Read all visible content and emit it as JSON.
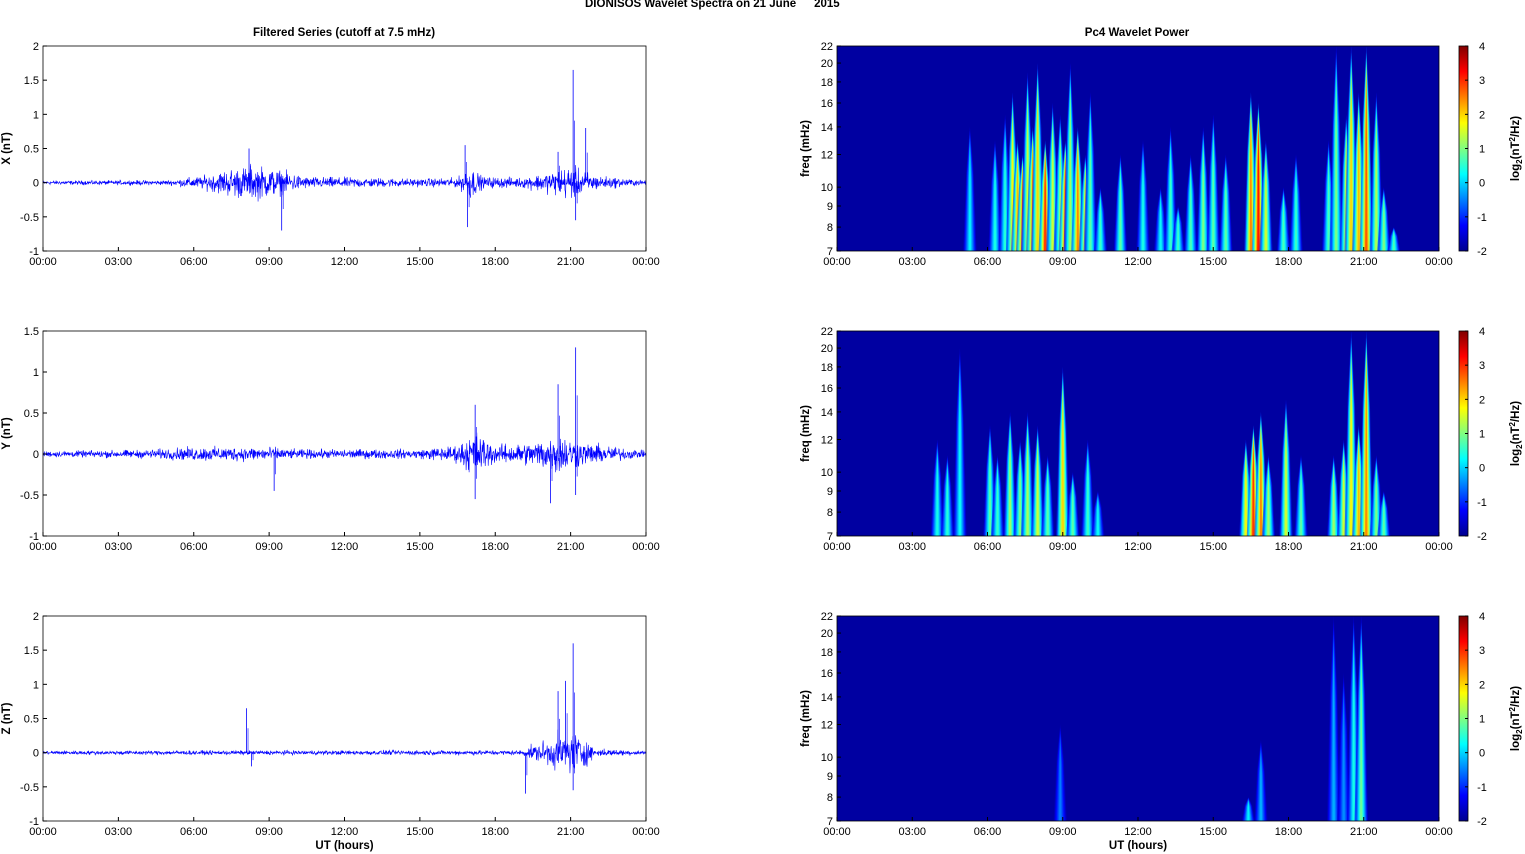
{
  "figure": {
    "title": "DIONISOS Wavelet Spectra on 21 June",
    "year": "2015",
    "left_title": "Filtered Series (cutoff at 7.5 mHz)",
    "right_title": "Pc4 Wavelet Power",
    "xlabel": "UT (hours)",
    "series_color": "#0000ff",
    "colormap": [
      "#00008f",
      "#0000ff",
      "#0080ff",
      "#00ffff",
      "#80ff80",
      "#ffff00",
      "#ff8000",
      "#ff0000",
      "#800000"
    ]
  },
  "chart_data": [
    {
      "type": "line",
      "component": "X",
      "ylabel": "X (nT)",
      "xticks": [
        "00:00",
        "03:00",
        "06:00",
        "09:00",
        "12:00",
        "15:00",
        "18:00",
        "21:00",
        "00:00"
      ],
      "xlim": [
        0,
        24
      ],
      "ylim": [
        -1,
        2
      ],
      "yticks": [
        "-1",
        "-0.5",
        "0",
        "0.5",
        "1",
        "1.5",
        "2"
      ],
      "noise_envelope": [
        [
          0,
          0.04
        ],
        [
          5,
          0.05
        ],
        [
          6.5,
          0.15
        ],
        [
          7.5,
          0.3
        ],
        [
          8.5,
          0.35
        ],
        [
          9.5,
          0.25
        ],
        [
          10.5,
          0.12
        ],
        [
          13,
          0.1
        ],
        [
          15,
          0.08
        ],
        [
          16.5,
          0.1
        ],
        [
          17,
          0.35
        ],
        [
          17.5,
          0.12
        ],
        [
          19,
          0.1
        ],
        [
          20,
          0.2
        ],
        [
          21,
          0.35
        ],
        [
          22,
          0.15
        ],
        [
          24,
          0.04
        ]
      ],
      "spikes": [
        [
          8.2,
          0.5
        ],
        [
          9.5,
          -0.7
        ],
        [
          16.8,
          0.55
        ],
        [
          16.9,
          -0.65
        ],
        [
          20.5,
          0.45
        ],
        [
          21.1,
          1.65
        ],
        [
          21.2,
          -0.55
        ],
        [
          21.6,
          0.8
        ]
      ]
    },
    {
      "type": "line",
      "component": "Y",
      "ylabel": "Y (nT)",
      "xticks": [
        "00:00",
        "03:00",
        "06:00",
        "09:00",
        "12:00",
        "15:00",
        "18:00",
        "21:00",
        "00:00"
      ],
      "xlim": [
        0,
        24
      ],
      "ylim": [
        -1,
        1.5
      ],
      "yticks": [
        "-1",
        "-0.5",
        "0",
        "0.5",
        "1",
        "1.5"
      ],
      "noise_envelope": [
        [
          0,
          0.05
        ],
        [
          4,
          0.07
        ],
        [
          6,
          0.12
        ],
        [
          9,
          0.12
        ],
        [
          10,
          0.08
        ],
        [
          15,
          0.08
        ],
        [
          16.5,
          0.15
        ],
        [
          17.2,
          0.4
        ],
        [
          18,
          0.15
        ],
        [
          19.5,
          0.2
        ],
        [
          20.5,
          0.35
        ],
        [
          21.5,
          0.2
        ],
        [
          24,
          0.05
        ]
      ],
      "spikes": [
        [
          9.2,
          -0.45
        ],
        [
          17.2,
          0.6
        ],
        [
          17.2,
          -0.55
        ],
        [
          20.2,
          -0.6
        ],
        [
          21.2,
          1.3
        ],
        [
          21.2,
          -0.5
        ],
        [
          20.5,
          0.85
        ]
      ]
    },
    {
      "type": "line",
      "component": "Z",
      "ylabel": "Z (nT)",
      "xticks": [
        "00:00",
        "03:00",
        "06:00",
        "09:00",
        "12:00",
        "15:00",
        "18:00",
        "21:00",
        "00:00"
      ],
      "xlim": [
        0,
        24
      ],
      "ylim": [
        -1,
        2
      ],
      "yticks": [
        "-1",
        "-0.5",
        "0",
        "0.5",
        "1",
        "1.5",
        "2"
      ],
      "noise_envelope": [
        [
          0,
          0.04
        ],
        [
          19,
          0.05
        ],
        [
          19.5,
          0.15
        ],
        [
          20.5,
          0.35
        ],
        [
          21.2,
          0.45
        ],
        [
          22,
          0.08
        ],
        [
          24,
          0.04
        ]
      ],
      "spikes": [
        [
          8.1,
          0.65
        ],
        [
          8.3,
          -0.2
        ],
        [
          19.2,
          -0.6
        ],
        [
          20.8,
          1.05
        ],
        [
          21.1,
          1.6
        ],
        [
          21.1,
          -0.55
        ],
        [
          20.5,
          0.9
        ]
      ]
    },
    {
      "type": "heatmap",
      "component": "X",
      "ylabel": "freq (mHz)",
      "xticks": [
        "00:00",
        "03:00",
        "06:00",
        "09:00",
        "12:00",
        "15:00",
        "18:00",
        "21:00",
        "00:00"
      ],
      "yticks": [
        "7",
        "8",
        "9",
        "10",
        "12",
        "14",
        "16",
        "18",
        "20",
        "22"
      ],
      "ylim": [
        7,
        22
      ],
      "xlim": [
        0,
        24
      ],
      "colorbar": {
        "label": "log",
        "sub": "2",
        "unit_before": "(nT",
        "sup": "2",
        "unit_after": "/Hz)",
        "ticks": [
          "-2",
          "-1",
          "0",
          "1",
          "2",
          "3",
          "4"
        ],
        "range": [
          -2,
          4
        ]
      },
      "bursts": [
        [
          5.3,
          14,
          0.2
        ],
        [
          6.3,
          13,
          0.4
        ],
        [
          6.7,
          15,
          0.5
        ],
        [
          7.0,
          17,
          1.8
        ],
        [
          7.2,
          13,
          2.2
        ],
        [
          7.4,
          12,
          2.8
        ],
        [
          7.6,
          19,
          1.5
        ],
        [
          7.8,
          14,
          2.6
        ],
        [
          8.0,
          20,
          2.0
        ],
        [
          8.3,
          13,
          3.0
        ],
        [
          8.6,
          16,
          1.5
        ],
        [
          8.9,
          15,
          1.2
        ],
        [
          9.1,
          13,
          2.8
        ],
        [
          9.3,
          20,
          1.2
        ],
        [
          9.6,
          14,
          2.5
        ],
        [
          9.9,
          12,
          1.8
        ],
        [
          10.1,
          17,
          0.8
        ],
        [
          10.5,
          10,
          0.6
        ],
        [
          11.3,
          12,
          0.8
        ],
        [
          12.2,
          13,
          0.4
        ],
        [
          12.9,
          10,
          0.3
        ],
        [
          13.3,
          14,
          0.6
        ],
        [
          13.6,
          9,
          0.6
        ],
        [
          14.1,
          12,
          0.7
        ],
        [
          14.6,
          14,
          1.0
        ],
        [
          15.0,
          15,
          0.8
        ],
        [
          15.5,
          12,
          0.8
        ],
        [
          16.5,
          17,
          2.5
        ],
        [
          16.8,
          16,
          3.2
        ],
        [
          17.1,
          13,
          1.5
        ],
        [
          17.8,
          10,
          0.7
        ],
        [
          18.3,
          12,
          0.6
        ],
        [
          19.6,
          13,
          0.7
        ],
        [
          19.9,
          22,
          1.0
        ],
        [
          20.3,
          15,
          1.6
        ],
        [
          20.5,
          22,
          2.0
        ],
        [
          20.8,
          17,
          2.2
        ],
        [
          21.1,
          22,
          2.8
        ],
        [
          21.5,
          17,
          1.3
        ],
        [
          21.8,
          10,
          1.0
        ],
        [
          22.2,
          8,
          0.7
        ]
      ]
    },
    {
      "type": "heatmap",
      "component": "Y",
      "ylabel": "freq (mHz)",
      "xticks": [
        "00:00",
        "03:00",
        "06:00",
        "09:00",
        "12:00",
        "15:00",
        "18:00",
        "21:00",
        "00:00"
      ],
      "yticks": [
        "7",
        "8",
        "9",
        "10",
        "12",
        "14",
        "16",
        "18",
        "20",
        "22"
      ],
      "ylim": [
        7,
        22
      ],
      "xlim": [
        0,
        24
      ],
      "colorbar": {
        "label": "log",
        "sub": "2",
        "unit_before": "(nT",
        "sup": "2",
        "unit_after": "/Hz)",
        "ticks": [
          "-2",
          "-1",
          "0",
          "1",
          "2",
          "3",
          "4"
        ],
        "range": [
          -2,
          4
        ]
      },
      "bursts": [
        [
          4.0,
          12,
          0.4
        ],
        [
          4.4,
          11,
          0.5
        ],
        [
          4.9,
          20,
          0.3
        ],
        [
          6.1,
          13,
          0.8
        ],
        [
          6.4,
          11,
          0.6
        ],
        [
          6.9,
          14,
          1.2
        ],
        [
          7.3,
          12,
          1.0
        ],
        [
          7.6,
          14,
          1.3
        ],
        [
          8.0,
          13,
          1.5
        ],
        [
          8.4,
          11,
          0.8
        ],
        [
          9.0,
          18,
          2.0
        ],
        [
          9.4,
          10,
          0.8
        ],
        [
          10.0,
          12,
          0.6
        ],
        [
          10.4,
          9,
          0.3
        ],
        [
          16.3,
          12,
          1.8
        ],
        [
          16.6,
          13,
          3.0
        ],
        [
          16.9,
          14,
          2.5
        ],
        [
          17.2,
          11,
          1.2
        ],
        [
          17.9,
          15,
          1.5
        ],
        [
          18.5,
          11,
          0.8
        ],
        [
          19.8,
          11,
          1.2
        ],
        [
          20.2,
          12,
          1.5
        ],
        [
          20.5,
          22,
          1.8
        ],
        [
          20.8,
          13,
          2.2
        ],
        [
          21.1,
          22,
          2.5
        ],
        [
          21.5,
          11,
          1.0
        ],
        [
          21.8,
          9,
          0.8
        ]
      ]
    },
    {
      "type": "heatmap",
      "component": "Z",
      "ylabel": "freq (mHz)",
      "xticks": [
        "00:00",
        "03:00",
        "06:00",
        "09:00",
        "12:00",
        "15:00",
        "18:00",
        "21:00",
        "00:00"
      ],
      "yticks": [
        "7",
        "8",
        "9",
        "10",
        "12",
        "14",
        "16",
        "18",
        "20",
        "22"
      ],
      "ylim": [
        7,
        22
      ],
      "xlim": [
        0,
        24
      ],
      "colorbar": {
        "label": "log",
        "sub": "2",
        "unit_before": "(nT",
        "sup": "2",
        "unit_after": "/Hz)",
        "ticks": [
          "-2",
          "-1",
          "0",
          "1",
          "2",
          "3",
          "4"
        ],
        "range": [
          -2,
          4
        ]
      },
      "bursts": [
        [
          8.9,
          12,
          -0.5
        ],
        [
          16.4,
          8,
          0.2
        ],
        [
          16.9,
          11,
          -0.2
        ],
        [
          19.8,
          22,
          -0.2
        ],
        [
          20.2,
          16,
          -0.4
        ],
        [
          20.6,
          22,
          0.4
        ],
        [
          20.9,
          22,
          0.9
        ]
      ]
    }
  ]
}
